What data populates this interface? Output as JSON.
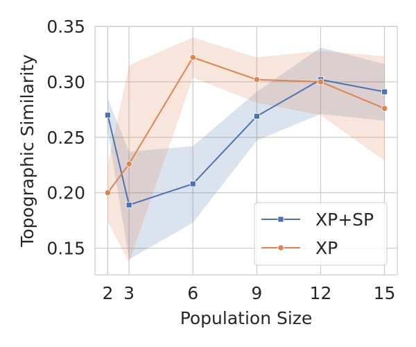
{
  "chart_data": {
    "type": "line",
    "xlabel": "Population Size",
    "ylabel": "Topographic Similarity",
    "xticks": [
      2,
      3,
      6,
      9,
      12,
      15
    ],
    "yticks": [
      0.15,
      0.2,
      0.25,
      0.3,
      0.35
    ],
    "ytick_labels": [
      "0.15",
      "0.20",
      "0.25",
      "0.30",
      "0.35"
    ],
    "xlim": [
      1.4,
      15.6
    ],
    "ylim": [
      0.126,
      0.35
    ],
    "grid": true,
    "legend_position": "lower-right",
    "series": [
      {
        "name": "XP+SP",
        "color": "#4c72b0",
        "marker": "square",
        "x": [
          2,
          3,
          6,
          9,
          12,
          15
        ],
        "y": [
          0.27,
          0.189,
          0.208,
          0.269,
          0.302,
          0.291
        ],
        "ci_lower": [
          0.256,
          0.14,
          0.173,
          0.247,
          0.271,
          0.265
        ],
        "ci_upper": [
          0.285,
          0.237,
          0.242,
          0.291,
          0.331,
          0.316
        ]
      },
      {
        "name": "XP",
        "color": "#dd8452",
        "marker": "circle",
        "x": [
          2,
          3,
          6,
          9,
          12,
          15
        ],
        "y": [
          0.2,
          0.226,
          0.322,
          0.302,
          0.3,
          0.276
        ],
        "ci_lower": [
          0.174,
          0.137,
          0.304,
          0.281,
          0.27,
          0.229
        ],
        "ci_upper": [
          0.225,
          0.315,
          0.34,
          0.322,
          0.328,
          0.323
        ]
      }
    ]
  }
}
